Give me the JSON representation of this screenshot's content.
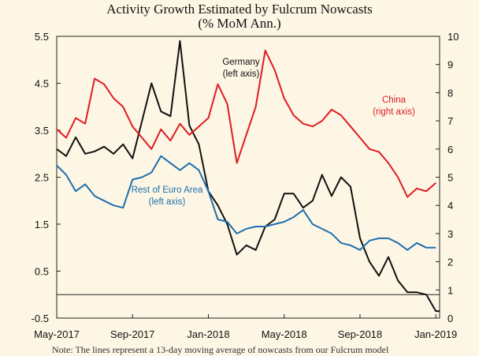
{
  "chart_data": {
    "type": "line",
    "title": "Activity Growth Estimated by Fulcrum Nowcasts",
    "subtitle": "(% MoM Ann.)",
    "x_ticks": [
      "May-2017",
      "Sep-2017",
      "Jan-2018",
      "May-2018",
      "Sep-2018",
      "Jan-2019"
    ],
    "x_range": [
      "2017-05",
      "2019-01"
    ],
    "left_axis": {
      "ylim": [
        -0.5,
        5.5
      ],
      "ticks": [
        "5.5",
        "4.5",
        "3.5",
        "2.5",
        "1.5",
        "0.5",
        "-0.5"
      ]
    },
    "right_axis": {
      "ylim": [
        0,
        10
      ],
      "ticks": [
        "10",
        "9",
        "8",
        "7",
        "6",
        "5",
        "4",
        "3",
        "2",
        "1",
        "0"
      ]
    },
    "zero_line_left": 0,
    "grid": false,
    "series": [
      {
        "name": "Germany",
        "label": "Germany\n(left axis)",
        "axis": "left",
        "color": "#111111",
        "x": [
          0,
          0.5,
          1,
          1.5,
          2,
          2.5,
          3,
          3.5,
          4,
          4.5,
          5,
          5.5,
          6,
          6.5,
          7,
          7.5,
          8,
          8.5,
          9,
          9.5,
          10,
          10.5,
          11,
          11.5,
          12,
          12.5,
          13,
          13.5,
          14,
          14.5,
          15,
          15.5,
          16,
          16.5,
          17,
          17.5,
          18,
          18.5,
          19,
          19.5,
          20,
          20.2
        ],
        "values": [
          3.1,
          2.95,
          3.35,
          3.0,
          3.05,
          3.15,
          3.0,
          3.2,
          2.9,
          3.7,
          4.5,
          3.9,
          3.8,
          5.4,
          3.6,
          3.2,
          2.2,
          1.9,
          1.5,
          0.85,
          1.05,
          0.95,
          1.45,
          1.6,
          2.15,
          2.15,
          1.85,
          2.0,
          2.55,
          2.1,
          2.5,
          2.3,
          1.2,
          0.7,
          0.4,
          0.8,
          0.3,
          0.05,
          0.05,
          0.0,
          -0.35,
          -0.35
        ]
      },
      {
        "name": "Rest of Euro Area",
        "label": "Rest of Euro Area\n(left axis)",
        "axis": "left",
        "color": "#1d6fb0",
        "x": [
          0,
          0.5,
          1,
          1.5,
          2,
          2.5,
          3,
          3.5,
          4,
          4.5,
          5,
          5.5,
          6,
          6.5,
          7,
          7.5,
          8,
          8.5,
          9,
          9.5,
          10,
          10.5,
          11,
          11.5,
          12,
          12.5,
          13,
          13.5,
          14,
          14.5,
          15,
          15.5,
          16,
          16.5,
          17,
          17.5,
          18,
          18.5,
          19,
          19.5,
          20
        ],
        "values": [
          2.75,
          2.55,
          2.2,
          2.35,
          2.1,
          2.0,
          1.9,
          1.85,
          2.45,
          2.5,
          2.6,
          2.95,
          2.8,
          2.65,
          2.8,
          2.65,
          2.2,
          1.6,
          1.55,
          1.3,
          1.4,
          1.45,
          1.45,
          1.5,
          1.55,
          1.65,
          1.8,
          1.5,
          1.4,
          1.3,
          1.1,
          1.05,
          0.95,
          1.15,
          1.2,
          1.2,
          1.1,
          0.95,
          1.1,
          1.0,
          1.0
        ]
      },
      {
        "name": "China",
        "label": "China\n(right axis)",
        "axis": "right",
        "color": "#e01b24",
        "x": [
          0,
          0.5,
          1,
          1.5,
          2,
          2.5,
          3,
          3.5,
          4,
          4.5,
          5,
          5.5,
          6,
          6.5,
          7,
          7.5,
          8,
          8.5,
          9,
          9.5,
          10,
          10.5,
          11,
          11.5,
          12,
          12.5,
          13,
          13.5,
          14,
          14.5,
          15,
          15.5,
          16,
          16.5,
          17,
          17.5,
          18,
          18.5,
          19,
          19.5,
          20
        ],
        "values": [
          6.7,
          6.4,
          7.1,
          6.9,
          8.5,
          8.3,
          7.8,
          7.5,
          6.8,
          6.4,
          6.0,
          6.7,
          6.3,
          6.9,
          6.5,
          6.8,
          7.1,
          8.3,
          7.6,
          5.5,
          6.5,
          7.5,
          9.5,
          8.8,
          7.8,
          7.2,
          6.9,
          6.8,
          7.0,
          7.4,
          7.2,
          6.8,
          6.4,
          6.0,
          5.9,
          5.5,
          5.0,
          4.3,
          4.6,
          4.5,
          4.8
        ]
      }
    ]
  },
  "footer_note": "Note: The lines represent a 13-day moving average of nowcasts from our Fulcrum model"
}
